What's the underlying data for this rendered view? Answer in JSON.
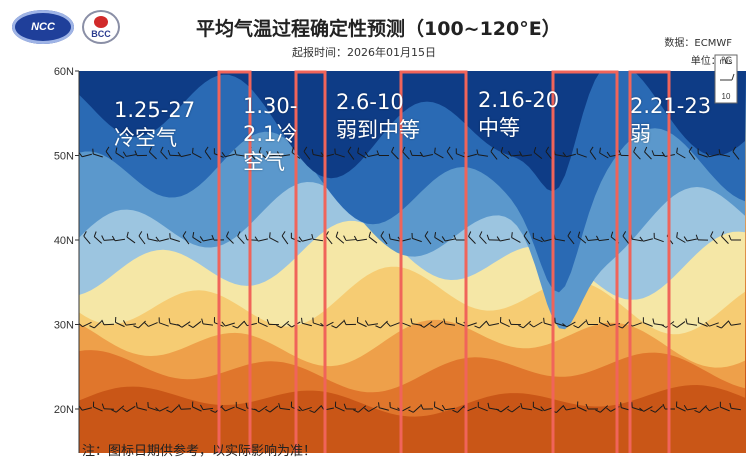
{
  "header": {
    "logo_left": "NCC",
    "logo_right": "BCC",
    "title": "平均气温过程确定性预测（100~120°E）",
    "subtitle": "起报时间：2026年01月15日",
    "source": "数据：ECMWF",
    "unit": "单位：℃"
  },
  "footnote": "注：图标日期供参考，以实际影响为准！",
  "annotations": [
    {
      "text": "1.25-27\n冷空气"
    },
    {
      "text": "1.30-\n2.1冷\n空气"
    },
    {
      "text": "2.6-10\n弱到中等"
    },
    {
      "text": "2.16-20\n中等"
    },
    {
      "text": "2.21-23\n弱"
    }
  ],
  "legend_box": {
    "line1": "m/s",
    "line2": "10"
  },
  "colors": {
    "highlight_box": "#f0645a",
    "gradient": [
      "#0e3c86",
      "#2a6ab4",
      "#5b98cc",
      "#9cc5e0",
      "#f5e7a6",
      "#f6cc73",
      "#eea04a",
      "#e0762c",
      "#c95617"
    ]
  },
  "chart_data": {
    "type": "heatmap",
    "title": "平均气温过程确定性预测（100~120°E）",
    "xlabel": "",
    "ylabel": "",
    "y_ticks": [
      "60N",
      "50N",
      "40N",
      "30N",
      "20N"
    ],
    "ylim": [
      17,
      60
    ],
    "highlighted_periods": [
      "1.25-27",
      "1.30-2.1",
      "2.6-10",
      "2.16-20",
      "2.21-23"
    ],
    "description_values": [
      "冷空气",
      "冷空气",
      "弱到中等",
      "中等",
      "弱"
    ]
  }
}
